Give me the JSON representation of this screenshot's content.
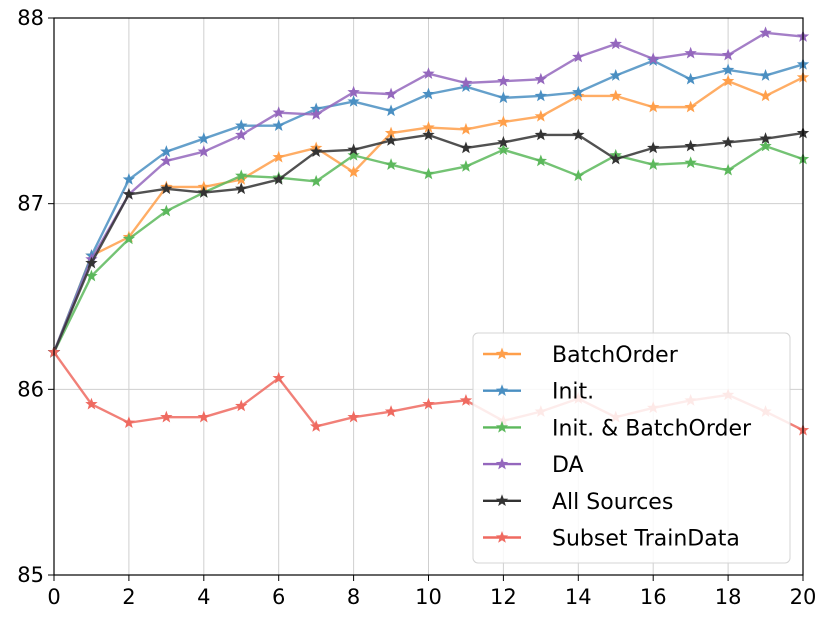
{
  "chart_data": {
    "type": "line",
    "title": "",
    "xlabel": "",
    "ylabel": "",
    "xlim": [
      0,
      20
    ],
    "ylim": [
      85,
      88
    ],
    "xticks": [
      0,
      2,
      4,
      6,
      8,
      10,
      12,
      14,
      16,
      18,
      20
    ],
    "yticks": [
      85,
      86,
      87,
      88
    ],
    "grid": true,
    "legend_position": "lower-right",
    "x": [
      0,
      1,
      2,
      3,
      4,
      5,
      6,
      7,
      8,
      9,
      10,
      11,
      12,
      13,
      14,
      15,
      16,
      17,
      18,
      19,
      20
    ],
    "series": [
      {
        "name": "BatchOrder",
        "color": "#ff9f4a",
        "values": [
          86.2,
          86.72,
          86.82,
          87.09,
          87.09,
          87.13,
          87.25,
          87.3,
          87.17,
          87.38,
          87.41,
          87.4,
          87.44,
          87.47,
          87.58,
          87.58,
          87.52,
          87.52,
          87.66,
          87.58,
          87.68
        ]
      },
      {
        "name": "Init.",
        "color": "#4a8fc2",
        "values": [
          86.2,
          86.72,
          87.13,
          87.28,
          87.35,
          87.42,
          87.42,
          87.51,
          87.55,
          87.5,
          87.59,
          87.63,
          87.57,
          87.58,
          87.6,
          87.69,
          87.77,
          87.67,
          87.72,
          87.69,
          87.75
        ]
      },
      {
        "name": "Init. & BatchOrder",
        "color": "#5cb85c",
        "values": [
          86.2,
          86.61,
          86.81,
          86.96,
          87.06,
          87.15,
          87.14,
          87.12,
          87.26,
          87.21,
          87.16,
          87.2,
          87.29,
          87.23,
          87.15,
          87.26,
          87.21,
          87.22,
          87.18,
          87.31,
          87.24
        ]
      },
      {
        "name": "DA",
        "color": "#9467bd",
        "values": [
          86.2,
          86.7,
          87.05,
          87.23,
          87.28,
          87.37,
          87.49,
          87.48,
          87.6,
          87.59,
          87.7,
          87.65,
          87.66,
          87.67,
          87.79,
          87.86,
          87.78,
          87.81,
          87.8,
          87.92,
          87.9
        ]
      },
      {
        "name": "All Sources",
        "color": "#333333",
        "values": [
          86.2,
          86.68,
          87.05,
          87.08,
          87.06,
          87.08,
          87.13,
          87.28,
          87.29,
          87.34,
          87.37,
          87.3,
          87.33,
          87.37,
          87.37,
          87.24,
          87.3,
          87.31,
          87.33,
          87.35,
          87.38
        ]
      },
      {
        "name": "Subset TrainData",
        "color": "#ef6a60",
        "values": [
          86.2,
          85.92,
          85.82,
          85.85,
          85.85,
          85.91,
          86.06,
          85.8,
          85.85,
          85.88,
          85.92,
          85.94,
          85.83,
          85.88,
          85.95,
          85.85,
          85.9,
          85.94,
          85.97,
          85.88,
          85.78
        ]
      }
    ]
  }
}
